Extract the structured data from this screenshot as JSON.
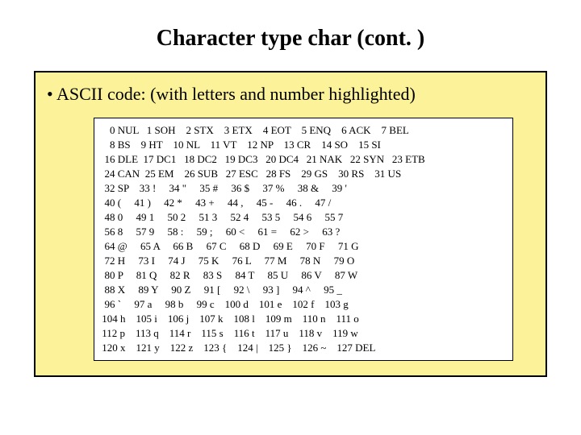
{
  "title": "Character type char (cont. )",
  "subtitle": "• ASCII code: (with letters and number highlighted)",
  "ascii": {
    "rows": [
      "    0 NUL   1 SOH    2 STX    3 ETX    4 EOT    5 ENQ    6 ACK    7 BEL",
      "    8 BS    9 HT    10 NL    11 VT    12 NP    13 CR    14 SO    15 SI",
      "  16 DLE  17 DC1   18 DC2   19 DC3   20 DC4   21 NAK   22 SYN   23 ETB",
      "  24 CAN  25 EM    26 SUB   27 ESC   28 FS    29 GS    30 RS    31 US",
      "  32 SP    33 !     34 \"     35 #     36 $     37 %     38 &     39 '",
      "  40 (     41 )     42 *     43 +     44 ,     45 -     46 .     47 /",
      "  48 0     49 1     50 2     51 3     52 4     53 5     54 6     55 7",
      "  56 8     57 9     58 :     59 ;     60 <     61 =     62 >     63 ?",
      "  64 @     65 A     66 B     67 C     68 D     69 E     70 F     71 G",
      "  72 H     73 I     74 J     75 K     76 L     77 M     78 N     79 O",
      "  80 P     81 Q     82 R     83 S     84 T     85 U     86 V     87 W",
      "  88 X     89 Y     90 Z     91 [     92 \\     93 ]     94 ^     95 _",
      "  96 `     97 a     98 b     99 c    100 d    101 e    102 f    103 g",
      " 104 h    105 i    106 j    107 k    108 l    109 m    110 n    111 o",
      " 112 p    113 q    114 r    115 s    116 t    117 u    118 v    119 w",
      " 120 x    121 y    122 z    123 {    124 |    125 }    126 ~    127 DEL"
    ]
  },
  "colors": {
    "outer_bg": "#fbf29a",
    "inner_bg": "#ffffff",
    "border": "#000000",
    "text": "#000000"
  },
  "typography": {
    "title_size": 28,
    "subtitle_size": 22,
    "ascii_size": 13
  }
}
